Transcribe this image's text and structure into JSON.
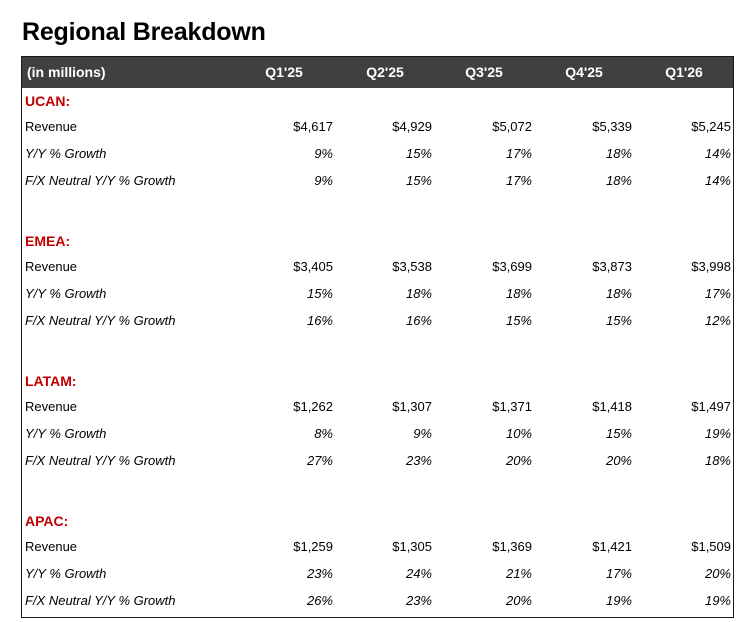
{
  "title": "Regional Breakdown",
  "header": {
    "label": "(in millions)",
    "columns": [
      "Q1'25",
      "Q2'25",
      "Q3'25",
      "Q4'25",
      "Q1'26"
    ]
  },
  "regions": [
    {
      "name": "UCAN:",
      "rows": [
        {
          "label": "Revenue",
          "values": [
            "$4,617",
            "$4,929",
            "$5,072",
            "$5,339",
            "$5,245"
          ]
        },
        {
          "label": "Y/Y % Growth",
          "values": [
            "9%",
            "15%",
            "17%",
            "18%",
            "14%"
          ]
        },
        {
          "label": "F/X Neutral Y/Y % Growth",
          "values": [
            "9%",
            "15%",
            "17%",
            "18%",
            "14%"
          ]
        }
      ]
    },
    {
      "name": "EMEA:",
      "rows": [
        {
          "label": "Revenue",
          "values": [
            "$3,405",
            "$3,538",
            "$3,699",
            "$3,873",
            "$3,998"
          ]
        },
        {
          "label": "Y/Y % Growth",
          "values": [
            "15%",
            "18%",
            "18%",
            "18%",
            "17%"
          ]
        },
        {
          "label": "F/X Neutral Y/Y % Growth",
          "values": [
            "16%",
            "16%",
            "15%",
            "15%",
            "12%"
          ]
        }
      ]
    },
    {
      "name": "LATAM:",
      "rows": [
        {
          "label": "Revenue",
          "values": [
            "$1,262",
            "$1,307",
            "$1,371",
            "$1,418",
            "$1,497"
          ]
        },
        {
          "label": "Y/Y % Growth",
          "values": [
            "8%",
            "9%",
            "10%",
            "15%",
            "19%"
          ]
        },
        {
          "label": "F/X Neutral Y/Y % Growth",
          "values": [
            "27%",
            "23%",
            "20%",
            "20%",
            "18%"
          ]
        }
      ]
    },
    {
      "name": "APAC:",
      "rows": [
        {
          "label": "Revenue",
          "values": [
            "$1,259",
            "$1,305",
            "$1,369",
            "$1,421",
            "$1,509"
          ]
        },
        {
          "label": "Y/Y % Growth",
          "values": [
            "23%",
            "24%",
            "21%",
            "17%",
            "20%"
          ]
        },
        {
          "label": "F/X Neutral Y/Y % Growth",
          "values": [
            "26%",
            "23%",
            "20%",
            "19%",
            "19%"
          ]
        }
      ]
    }
  ]
}
